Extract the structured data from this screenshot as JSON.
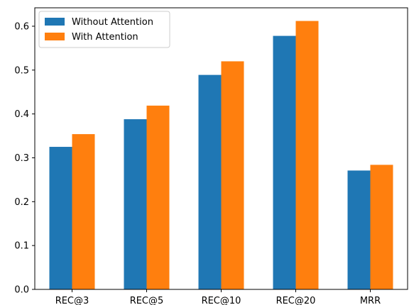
{
  "chart_data": {
    "type": "bar",
    "categories": [
      "REC@3",
      "REC@5",
      "REC@10",
      "REC@20",
      "MRR"
    ],
    "series": [
      {
        "name": "Without Attention",
        "color": "#1f77b4",
        "values": [
          0.325,
          0.388,
          0.489,
          0.578,
          0.271
        ]
      },
      {
        "name": "With Attention",
        "color": "#ff7f0e",
        "values": [
          0.354,
          0.419,
          0.52,
          0.612,
          0.284
        ]
      }
    ],
    "yticks": [
      "0.0",
      "0.1",
      "0.2",
      "0.3",
      "0.4",
      "0.5",
      "0.6"
    ],
    "ylim": [
      0,
      0.642
    ],
    "legend_position": "top-left",
    "grid": false
  }
}
